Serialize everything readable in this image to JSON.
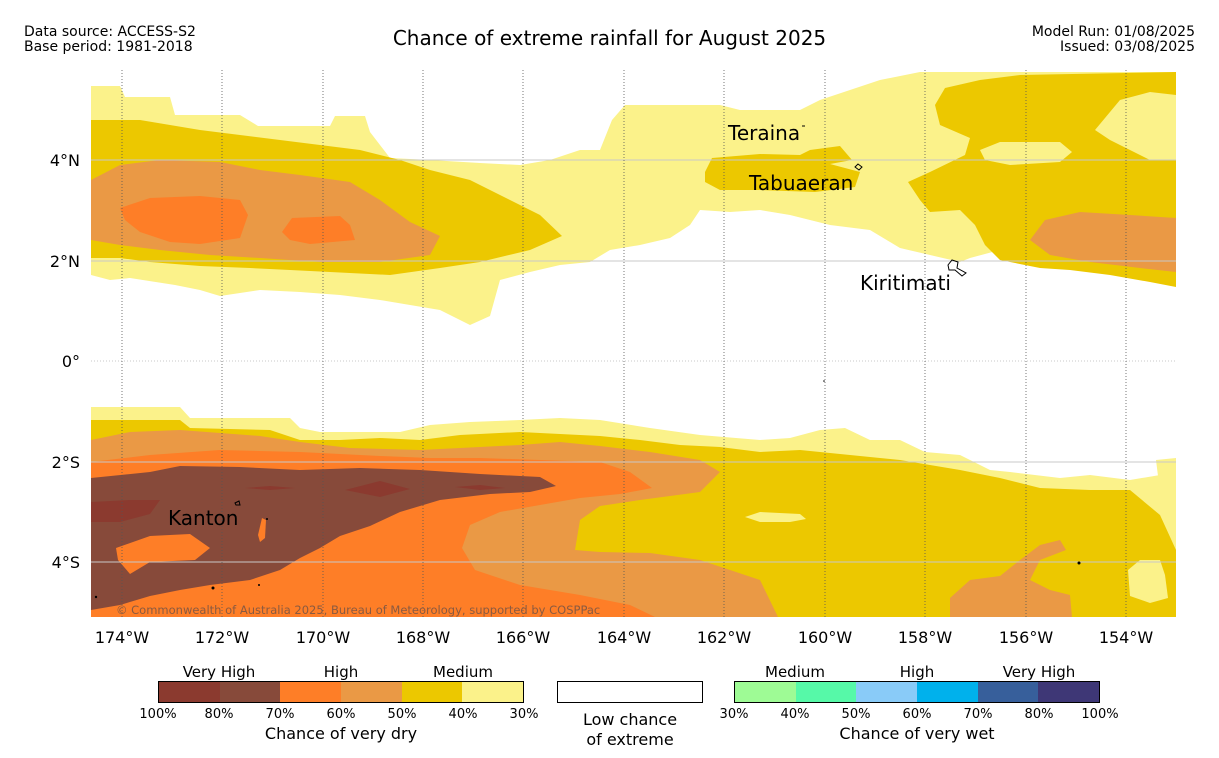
{
  "header": {
    "source_line1": "Data source: ACCESS-S2",
    "source_line2": "Base period: 1981-2018",
    "title": "Chance of extreme rainfall for August 2025",
    "model_run": "Model Run: 01/08/2025",
    "issued": "Issued: 03/08/2025"
  },
  "map": {
    "lon_labels": [
      "174°W",
      "172°W",
      "170°W",
      "168°W",
      "166°W",
      "164°W",
      "162°W",
      "160°W",
      "158°W",
      "156°W",
      "154°W"
    ],
    "lat_labels": [
      "4°N",
      "2°N",
      "0°",
      "2°S",
      "4°S"
    ],
    "places": [
      "Teraina",
      "Tabuaeran",
      "Kiritimati",
      "Kanton"
    ],
    "copyright": "© Commonwealth of Australia 2025, Bureau of Meteorology, supported by COSPPac",
    "extent": {
      "lon": [
        -174.6,
        -152.9
      ],
      "lat": [
        -5.1,
        5.8
      ]
    }
  },
  "legend": {
    "dry": {
      "groups": [
        "Very High",
        "High",
        "Medium"
      ],
      "ticks": [
        "100%",
        "80%",
        "70%",
        "60%",
        "50%",
        "40%",
        "30%"
      ],
      "colors": [
        "#8b3a2f",
        "#874a3a",
        "#fe7e27",
        "#ea9945",
        "#ecc800",
        "#fbf28a"
      ],
      "caption": "Chance of very dry"
    },
    "neutral": {
      "color": "#ffffff",
      "caption_line1": "Low chance",
      "caption_line2": "of extreme"
    },
    "wet": {
      "groups": [
        "Medium",
        "High",
        "Very High"
      ],
      "ticks": [
        "30%",
        "40%",
        "50%",
        "60%",
        "70%",
        "80%",
        "100%"
      ],
      "colors": [
        "#9efb95",
        "#56f9a8",
        "#89cbf8",
        "#00b1ec",
        "#375f9b",
        "#3e3776"
      ],
      "caption": "Chance of very wet"
    }
  }
}
